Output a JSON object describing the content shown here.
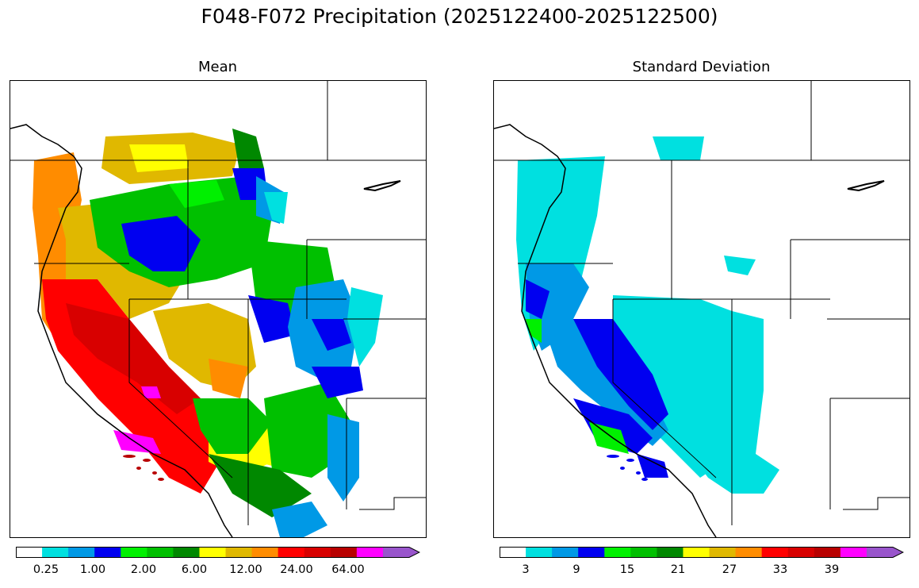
{
  "title": "F048-F072 Precipitation (2025122400-2025122500)",
  "panels": [
    {
      "title": "Mean",
      "colorbar": {
        "colors": [
          "#ffffff",
          "#00e0e0",
          "#0099e6",
          "#0000f0",
          "#00f000",
          "#00c000",
          "#008800",
          "#ffff00",
          "#e0b800",
          "#ff8c00",
          "#ff0000",
          "#d80000",
          "#b80000",
          "#ff00ff",
          "#9955cc"
        ],
        "tick_labels": [
          "0.25",
          "1.00",
          "2.00",
          "6.00",
          "12.00",
          "24.00",
          "64.00"
        ],
        "extend": "max"
      }
    },
    {
      "title": "Standard Deviation",
      "colorbar": {
        "colors": [
          "#ffffff",
          "#00e0e0",
          "#0099e6",
          "#0000f0",
          "#00f000",
          "#00c000",
          "#008800",
          "#ffff00",
          "#e0b800",
          "#ff8c00",
          "#ff0000",
          "#d80000",
          "#b80000",
          "#ff00ff",
          "#9955cc"
        ],
        "tick_labels": [
          "3",
          "9",
          "15",
          "21",
          "27",
          "33",
          "39"
        ],
        "extend": "max"
      }
    }
  ]
}
